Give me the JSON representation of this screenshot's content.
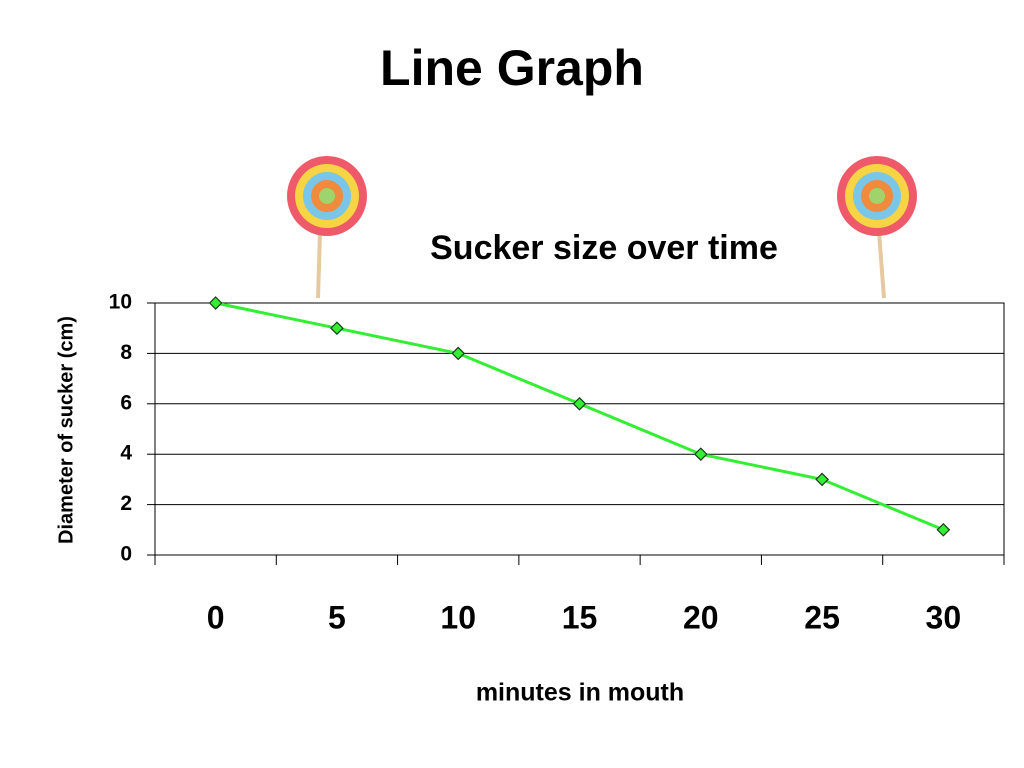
{
  "heading": "Line Graph",
  "chart_data": {
    "type": "line",
    "title": "Sucker size over time",
    "x_label": "minutes in mouth",
    "y_label": "Diameter of sucker (cm)",
    "categories": [
      "0",
      "5",
      "10",
      "15",
      "20",
      "25",
      "30"
    ],
    "values": [
      10,
      9,
      8,
      6,
      4,
      3,
      1
    ],
    "color": "#33ee33",
    "ylim": [
      0,
      10
    ],
    "yticks": [
      0,
      2,
      4,
      6,
      8,
      10
    ],
    "grid": true
  }
}
